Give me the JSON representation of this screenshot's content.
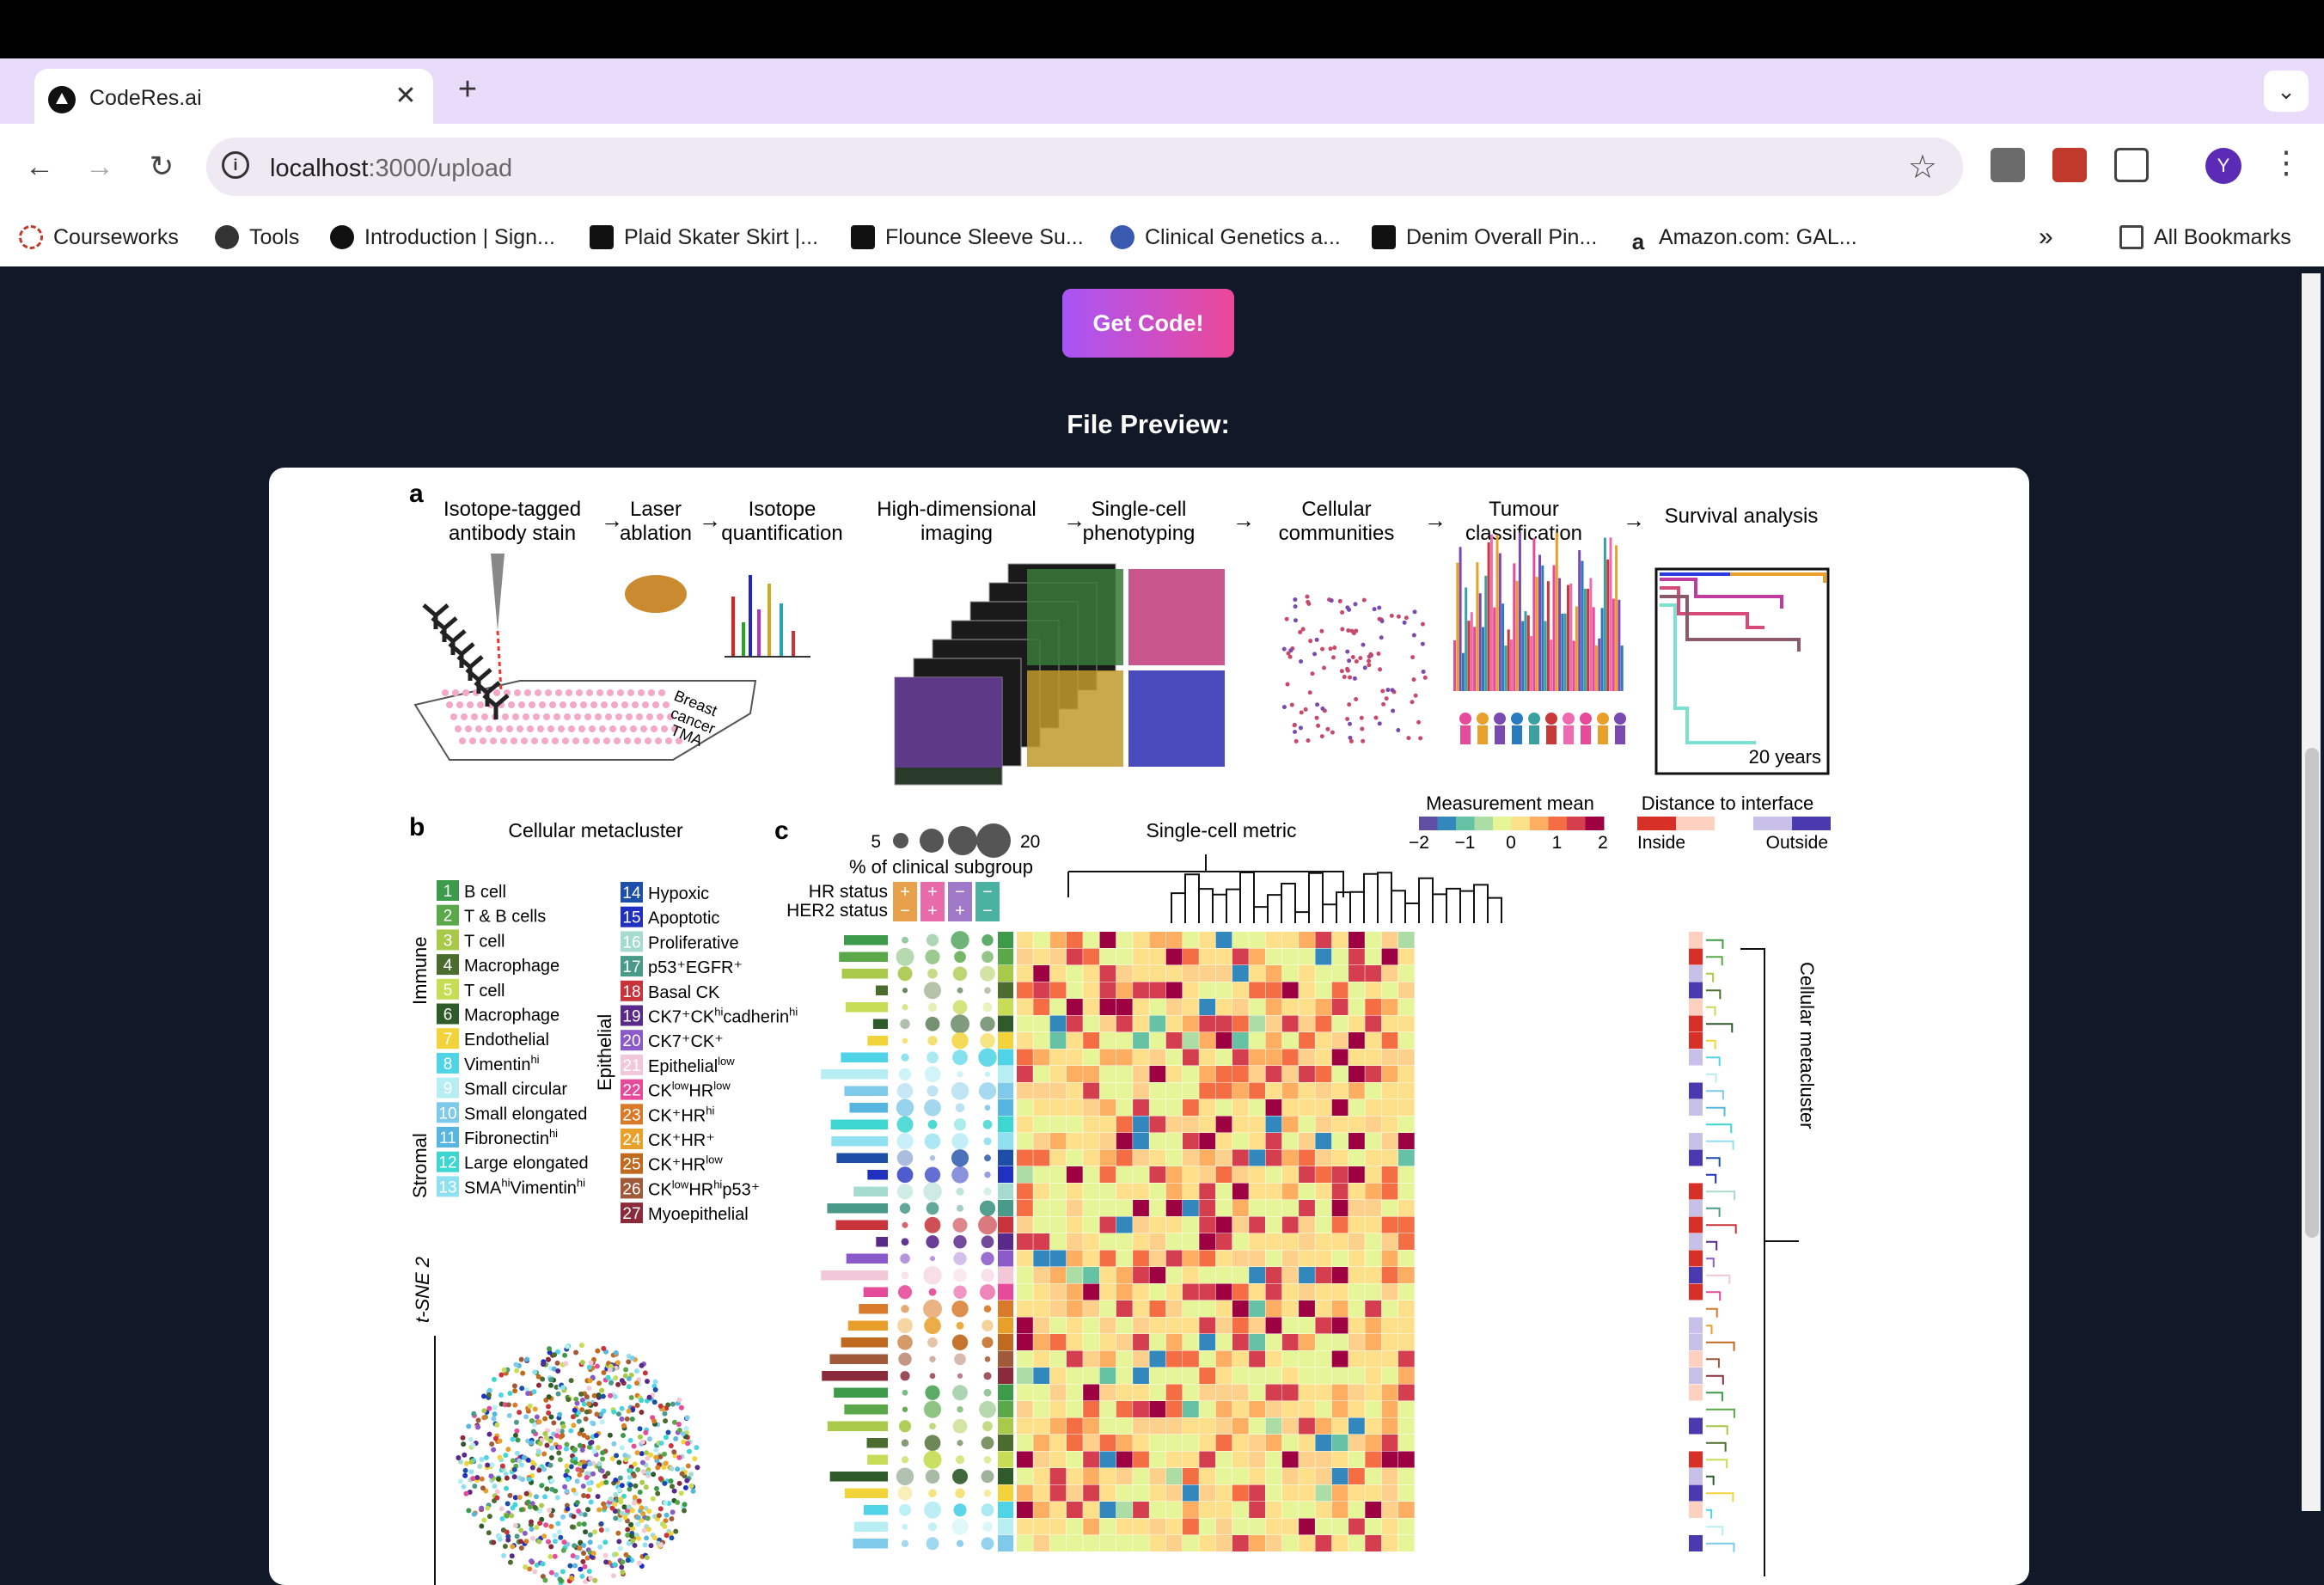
{
  "browser": {
    "tab_title": "CodeRes.ai",
    "tab_close": "✕",
    "new_tab": "+",
    "url_host": "localhost",
    "url_path": ":3000/upload",
    "bookmarks": [
      "Courseworks",
      "Tools",
      "Introduction | Sign...",
      "Plaid Skater Skirt |...",
      "Flounce Sleeve Su...",
      "Clinical Genetics a...",
      "Denim Overall Pin...",
      "Amazon.com: GAL..."
    ],
    "all_bookmarks": "All Bookmarks",
    "profile_initial": "Y",
    "accent": "#e9dcfb"
  },
  "page": {
    "button_label": "Get Code!",
    "preview_title": "File Preview:",
    "button_gradient": [
      "#a855f7",
      "#ec4899"
    ]
  },
  "figure": {
    "panel_a_label": "a",
    "steps": [
      [
        "Isotope-tagged",
        "antibody stain"
      ],
      [
        "Laser",
        "ablation"
      ],
      [
        "Isotope",
        "quantification"
      ],
      [
        "High-dimensional",
        "imaging"
      ],
      [
        "Single-cell",
        "phenotyping"
      ],
      [
        "Cellular",
        "communities"
      ],
      [
        "Tumour",
        "classification"
      ],
      [
        "Survival analysis"
      ]
    ],
    "tma_label": [
      "Breast",
      "cancer",
      "TMA"
    ],
    "survival_label": "20 years",
    "panel_b_label": "b",
    "panel_b_title": "Cellular metacluster",
    "panel_c_label": "c",
    "single_cell_metric": "Single-cell metric",
    "measurement_mean": "Measurement mean",
    "mm_ticks": [
      "−2",
      "−1",
      "0",
      "1",
      "2"
    ],
    "distance_interface": "Distance to interface",
    "inside": "Inside",
    "outside": "Outside",
    "size_min": "5",
    "size_max": "20",
    "pct_clinical": "% of clinical subgroup",
    "hr_status": "HR status",
    "her2_status": "HER2 status",
    "cellular_metacluster_vertical": "Cellular metacluster",
    "immune": "Immune",
    "stromal": "Stromal",
    "epithelial": "Epithelial",
    "tsne2": "t-SNE 2",
    "clusters_left": [
      {
        "n": "1",
        "name": "B cell",
        "color": "#3d9a4a"
      },
      {
        "n": "2",
        "name": "T & B cells",
        "color": "#5aa84a"
      },
      {
        "n": "3",
        "name": "T cell",
        "color": "#a9c94a"
      },
      {
        "n": "4",
        "name": "Macrophage",
        "color": "#4b6b2f"
      },
      {
        "n": "5",
        "name": "T cell",
        "color": "#c6dd55"
      },
      {
        "n": "6",
        "name": "Macrophage",
        "color": "#2f5a2a"
      },
      {
        "n": "7",
        "name": "Endothelial",
        "color": "#f2d43a"
      },
      {
        "n": "8",
        "name": "Vimentin",
        "sup": "hi",
        "color": "#4fd3e6"
      },
      {
        "n": "9",
        "name": "Small circular",
        "color": "#b6eef3"
      },
      {
        "n": "10",
        "name": "Small elongated",
        "color": "#7fc9ea"
      },
      {
        "n": "11",
        "name": "Fibronectin",
        "sup": "hi",
        "color": "#56b6e0"
      },
      {
        "n": "12",
        "name": "Large elongated",
        "color": "#3ed6d0"
      },
      {
        "n": "13",
        "name": "SMA",
        "sup": "hi",
        "name2": "Vimentin",
        "sup2": "hi",
        "color": "#8fe0f0"
      }
    ],
    "clusters_right": [
      {
        "n": "14",
        "name": "Hypoxic",
        "color": "#1e4fa8"
      },
      {
        "n": "15",
        "name": "Apoptotic",
        "color": "#2030c0"
      },
      {
        "n": "16",
        "name": "Proliferative",
        "color": "#a6dcd0"
      },
      {
        "n": "17",
        "name": "p53⁺EGFR⁺",
        "color": "#4a9a8a"
      },
      {
        "n": "18",
        "name": "Basal CK",
        "color": "#c8343a"
      },
      {
        "n": "19",
        "name": "CK7⁺CK",
        "sup": "hi",
        "name2": "cadherin",
        "sup2": "hi",
        "color": "#5a2a8a"
      },
      {
        "n": "20",
        "name": "CK7⁺CK⁺",
        "color": "#8a5ac8"
      },
      {
        "n": "21",
        "name": "Epithelial",
        "sup": "low",
        "color": "#f2c8d8"
      },
      {
        "n": "22",
        "name": "CK",
        "sup": "low",
        "name2": "HR",
        "sup2": "low",
        "color": "#e64a9a"
      },
      {
        "n": "23",
        "name": "CK⁺HR",
        "sup": "hi",
        "color": "#d87a2a"
      },
      {
        "n": "24",
        "name": "CK⁺HR⁺",
        "color": "#e8a02a"
      },
      {
        "n": "25",
        "name": "CK⁺HR",
        "sup": "low",
        "color": "#c06a20"
      },
      {
        "n": "26",
        "name": "CK",
        "sup": "low",
        "name2": "HR",
        "sup2": "hi",
        "name3": "p53⁺",
        "color": "#a05a3a"
      },
      {
        "n": "27",
        "name": "Myoepithelial",
        "color": "#8a2a3a"
      }
    ],
    "status_symbols": {
      "hr": [
        "+",
        "+",
        "−",
        "−"
      ],
      "her2": [
        "−",
        "+",
        "+",
        "−"
      ]
    },
    "status_colors": [
      "#e8a04a",
      "#e86aa8",
      "#a07ac8",
      "#4ab0a0"
    ],
    "measurement_colormap": [
      "#5e4fa2",
      "#3288bd",
      "#66c2a5",
      "#abdda4",
      "#e6f598",
      "#fee08b",
      "#fdae61",
      "#f46d43",
      "#d53e4f",
      "#9e0142"
    ],
    "distance_colormap": [
      "#d73027",
      "#fdd0c0",
      "#ffffff",
      "#c8c0e8",
      "#4a3ab0"
    ]
  }
}
